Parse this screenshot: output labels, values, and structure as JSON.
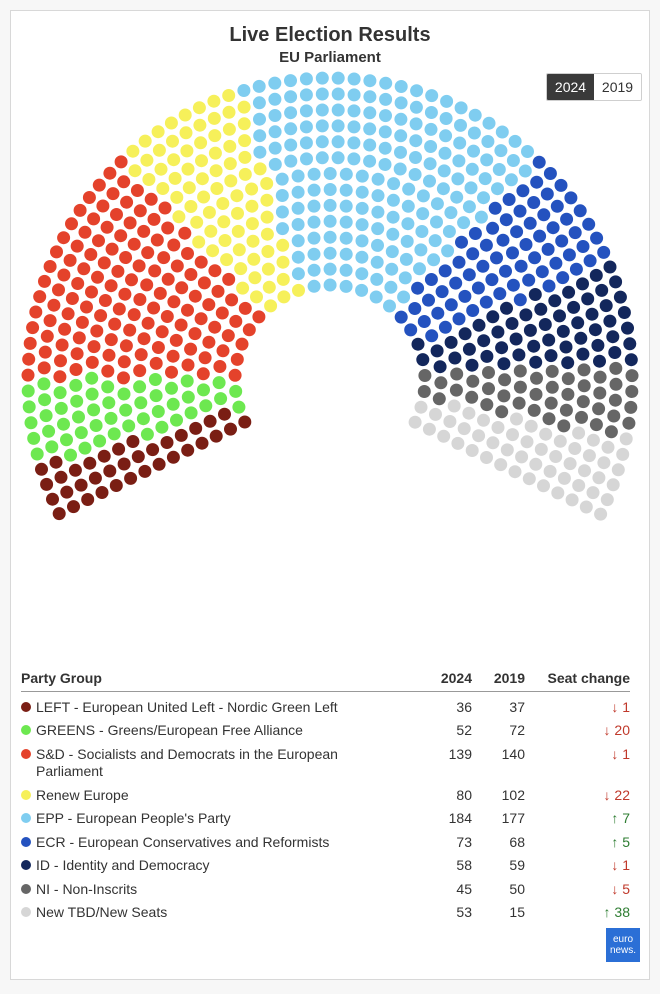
{
  "header": {
    "title": "Live Election Results",
    "subtitle": "EU Parliament",
    "years": [
      {
        "label": "2024",
        "active": true
      },
      {
        "label": "2019",
        "active": false
      }
    ]
  },
  "table": {
    "col_party": "Party Group",
    "col_2024": "2024",
    "col_2019": "2019",
    "col_change": "Seat change",
    "rows": [
      {
        "name": "LEFT - European United Left - Nordic Green Left",
        "color": "#7a1e14",
        "s2024": "36",
        "s2019": "37",
        "change": "↓ 1",
        "dir": "down"
      },
      {
        "name": "GREENS - Greens/European Free Alliance",
        "color": "#6de850",
        "s2024": "52",
        "s2019": "72",
        "change": "↓ 20",
        "dir": "down"
      },
      {
        "name": "S&D - Socialists and Democrats in the European Parliament",
        "color": "#e4422b",
        "s2024": "139",
        "s2019": "140",
        "change": "↓ 1",
        "dir": "down"
      },
      {
        "name": "Renew Europe",
        "color": "#f6f05a",
        "s2024": "80",
        "s2019": "102",
        "change": "↓ 22",
        "dir": "down"
      },
      {
        "name": "EPP - European People's Party",
        "color": "#7fcdf0",
        "s2024": "184",
        "s2019": "177",
        "change": "↑ 7",
        "dir": "up"
      },
      {
        "name": "ECR - European Conservatives and Reformists",
        "color": "#2452bf",
        "s2024": "73",
        "s2019": "68",
        "change": "↑ 5",
        "dir": "up"
      },
      {
        "name": "ID - Identity and Democracy",
        "color": "#13275c",
        "s2024": "58",
        "s2019": "59",
        "change": "↓ 1",
        "dir": "down"
      },
      {
        "name": "NI - Non-Inscrits",
        "color": "#666666",
        "s2024": "45",
        "s2019": "50",
        "change": "↓ 5",
        "dir": "down"
      },
      {
        "name": "New TBD/New Seats",
        "color": "#d6d6d6",
        "s2024": "53",
        "s2019": "15",
        "change": "↑ 38",
        "dir": "up"
      }
    ]
  },
  "chart_data": {
    "type": "parliament",
    "title": "Live Election Results",
    "subtitle": "EU Parliament",
    "year": "2024",
    "series": [
      {
        "name": "LEFT - European United Left - Nordic Green Left",
        "value": 36,
        "color": "#7a1e14"
      },
      {
        "name": "GREENS - Greens/European Free Alliance",
        "value": 52,
        "color": "#6de850"
      },
      {
        "name": "S&D - Socialists and Democrats in the European Parliament",
        "value": 139,
        "color": "#e4422b"
      },
      {
        "name": "Renew Europe",
        "value": 80,
        "color": "#f6f05a"
      },
      {
        "name": "EPP - European People's Party",
        "value": 184,
        "color": "#7fcdf0"
      },
      {
        "name": "ECR - European Conservatives and Reformists",
        "value": 73,
        "color": "#2452bf"
      },
      {
        "name": "ID - Identity and Democracy",
        "value": 58,
        "color": "#13275c"
      },
      {
        "name": "NI - Non-Inscrits",
        "value": 45,
        "color": "#666666"
      },
      {
        "name": "New TBD/New Seats",
        "value": 53,
        "color": "#d6d6d6"
      }
    ],
    "total_seats": 720
  },
  "logo": {
    "text_line1": "euro",
    "text_line2": "news."
  }
}
